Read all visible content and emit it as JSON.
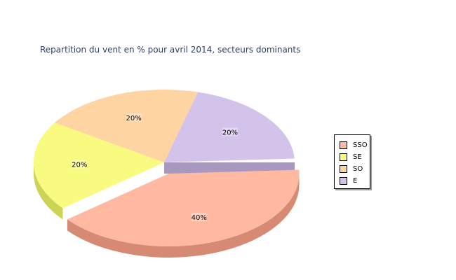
{
  "chart_data": {
    "type": "pie",
    "title": "Repartition du vent en % pour avril 2014, secteurs dominants",
    "categories": [
      "SSO",
      "SE",
      "SO",
      "E"
    ],
    "values": [
      40,
      20,
      20,
      20
    ],
    "value_labels": [
      "40%",
      "20%",
      "20%",
      "20%"
    ],
    "colors": [
      "#ffb9a0",
      "#f8fb80",
      "#ffd4a3",
      "#d3c3eb"
    ],
    "side_colors": [
      "#d68a73",
      "#cdd355",
      "#d6a878",
      "#a898c0"
    ],
    "exploded": [
      "SSO"
    ],
    "three_d": true,
    "legend_position": "right"
  }
}
